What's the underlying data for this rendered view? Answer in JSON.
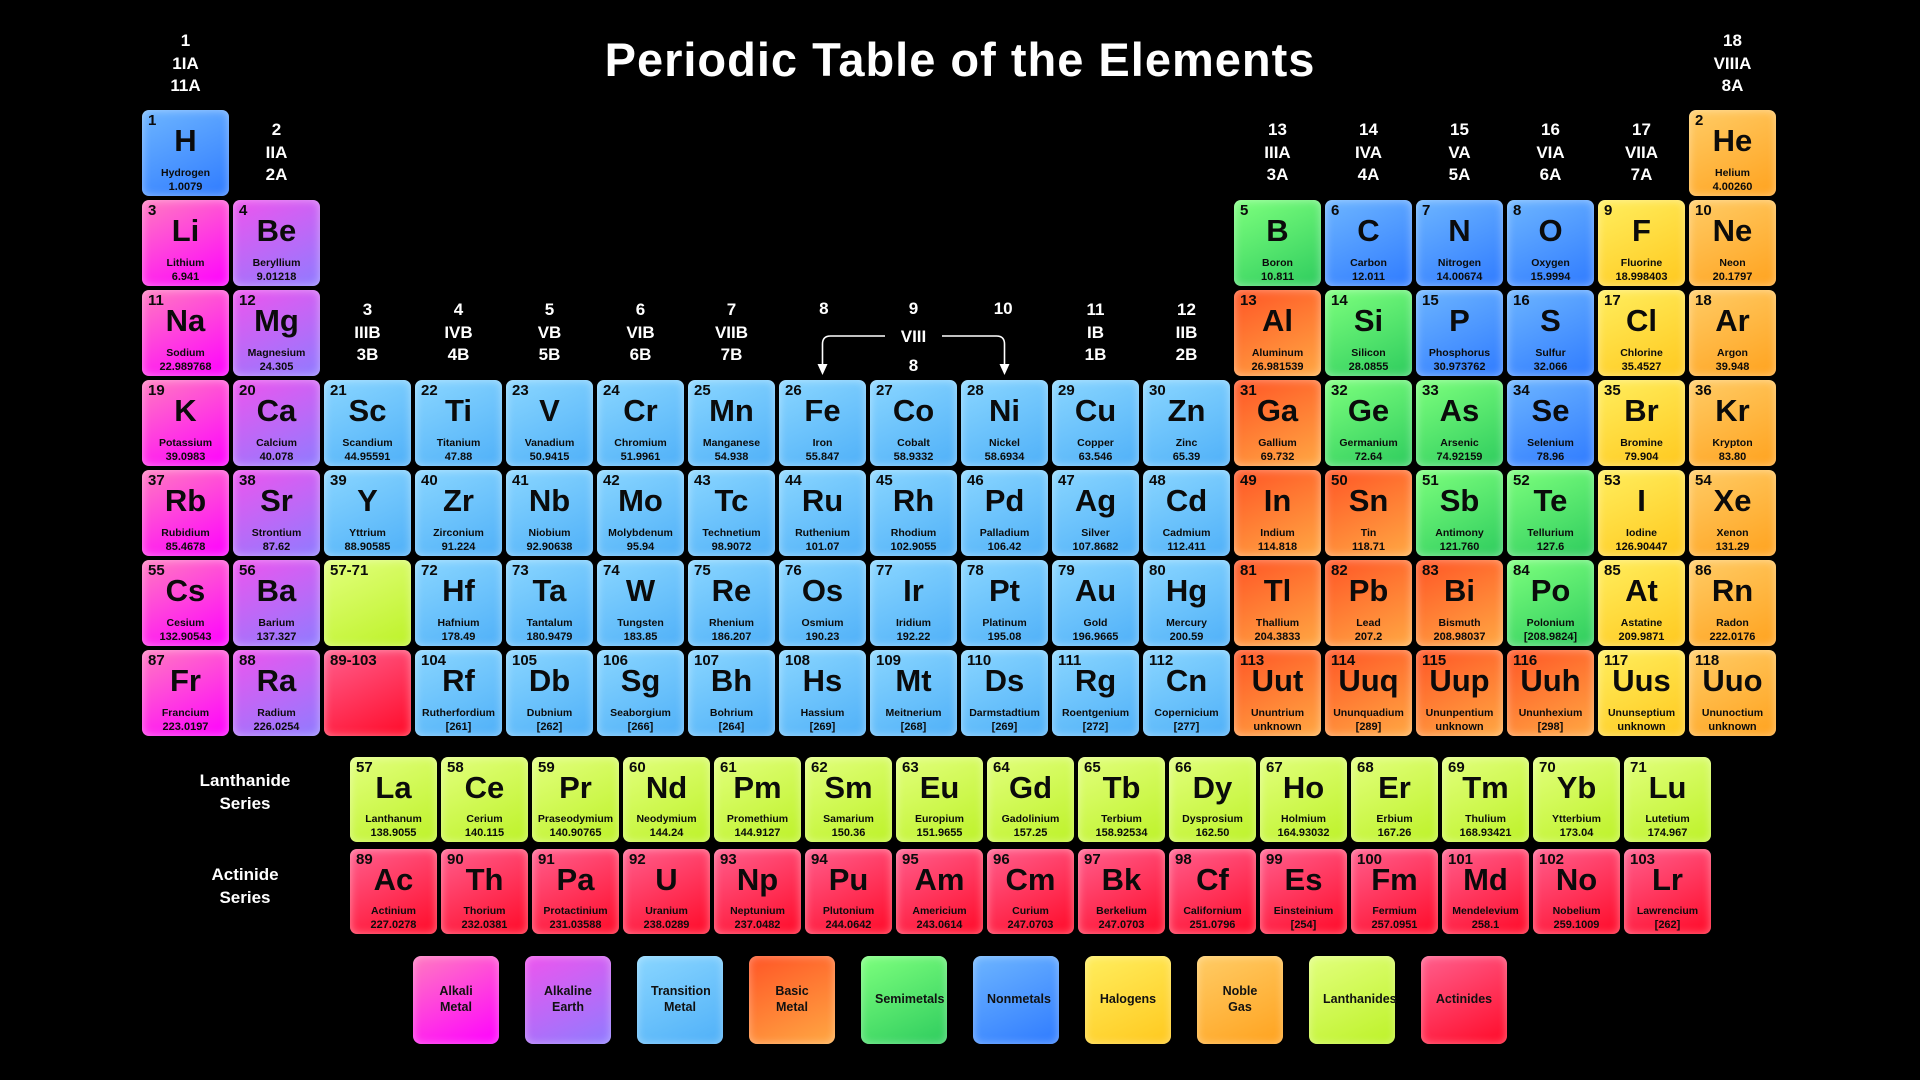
{
  "title": "Periodic Table of the Elements",
  "colors": {
    "alkali": [
      "#ff7bc0",
      "#ff00ff"
    ],
    "alkaline": [
      "#ee55ee",
      "#8f7bff"
    ],
    "transition": [
      "#8ad6ff",
      "#4fb0f8"
    ],
    "basic": [
      "#ff5526",
      "#ffa843"
    ],
    "semimetal": [
      "#7dff7d",
      "#2ecc5e"
    ],
    "nonmetal": [
      "#6db5ff",
      "#2f7bff"
    ],
    "halogen": [
      "#ffee5e",
      "#ffc81e"
    ],
    "noble": [
      "#ffcc66",
      "#ffa21e"
    ],
    "lanthanide": [
      "#e2ff7d",
      "#bdf228"
    ],
    "actinide": [
      "#ff5f8e",
      "#ff0a28"
    ]
  },
  "group_headers": [
    {
      "g": 1,
      "pos": "top",
      "lines": [
        "1",
        "1IA",
        "11A"
      ]
    },
    {
      "g": 18,
      "pos": "top",
      "lines": [
        "18",
        "VIIIA",
        "8A"
      ]
    },
    {
      "g": 2,
      "pos": "p1",
      "lines": [
        "2",
        "IIA",
        "2A"
      ]
    },
    {
      "g": 13,
      "pos": "p1",
      "lines": [
        "13",
        "IIIA",
        "3A"
      ]
    },
    {
      "g": 14,
      "pos": "p1",
      "lines": [
        "14",
        "IVA",
        "4A"
      ]
    },
    {
      "g": 15,
      "pos": "p1",
      "lines": [
        "15",
        "VA",
        "5A"
      ]
    },
    {
      "g": 16,
      "pos": "p1",
      "lines": [
        "16",
        "VIA",
        "6A"
      ]
    },
    {
      "g": 17,
      "pos": "p1",
      "lines": [
        "17",
        "VIIA",
        "7A"
      ]
    },
    {
      "g": 3,
      "pos": "p3",
      "lines": [
        "3",
        "IIIB",
        "3B"
      ]
    },
    {
      "g": 4,
      "pos": "p3",
      "lines": [
        "4",
        "IVB",
        "4B"
      ]
    },
    {
      "g": 5,
      "pos": "p3",
      "lines": [
        "5",
        "VB",
        "5B"
      ]
    },
    {
      "g": 6,
      "pos": "p3",
      "lines": [
        "6",
        "VIB",
        "6B"
      ]
    },
    {
      "g": 7,
      "pos": "p3",
      "lines": [
        "7",
        "VIIB",
        "7B"
      ]
    },
    {
      "g": 11,
      "pos": "p3",
      "lines": [
        "11",
        "IB",
        "1B"
      ]
    },
    {
      "g": 12,
      "pos": "p3",
      "lines": [
        "12",
        "IIB",
        "2B"
      ]
    }
  ],
  "viii_header": {
    "cols": [
      "8",
      "9",
      "10"
    ],
    "label": "VIII",
    "sub": "8"
  },
  "series_labels": {
    "lanthanide_line1": "Lanthanide",
    "lanthanide_line2": "Series",
    "actinide_line1": "Actinide",
    "actinide_line2": "Series"
  },
  "placeholders": [
    {
      "label": "57-71",
      "c": "lanthanide",
      "g": 3,
      "p": 6
    },
    {
      "label": "89-103",
      "c": "actinide",
      "g": 3,
      "p": 7
    }
  ],
  "elements": [
    {
      "n": "1",
      "s": "H",
      "name": "Hydrogen",
      "m": "1.0079",
      "c": "nonmetal",
      "g": 1,
      "p": 1
    },
    {
      "n": "2",
      "s": "He",
      "name": "Helium",
      "m": "4.00260",
      "c": "noble",
      "g": 18,
      "p": 1
    },
    {
      "n": "3",
      "s": "Li",
      "name": "Lithium",
      "m": "6.941",
      "c": "alkali",
      "g": 1,
      "p": 2
    },
    {
      "n": "4",
      "s": "Be",
      "name": "Beryllium",
      "m": "9.01218",
      "c": "alkaline",
      "g": 2,
      "p": 2
    },
    {
      "n": "5",
      "s": "B",
      "name": "Boron",
      "m": "10.811",
      "c": "semimetal",
      "g": 13,
      "p": 2
    },
    {
      "n": "6",
      "s": "C",
      "name": "Carbon",
      "m": "12.011",
      "c": "nonmetal",
      "g": 14,
      "p": 2
    },
    {
      "n": "7",
      "s": "N",
      "name": "Nitrogen",
      "m": "14.00674",
      "c": "nonmetal",
      "g": 15,
      "p": 2
    },
    {
      "n": "8",
      "s": "O",
      "name": "Oxygen",
      "m": "15.9994",
      "c": "nonmetal",
      "g": 16,
      "p": 2
    },
    {
      "n": "9",
      "s": "F",
      "name": "Fluorine",
      "m": "18.998403",
      "c": "halogen",
      "g": 17,
      "p": 2
    },
    {
      "n": "10",
      "s": "Ne",
      "name": "Neon",
      "m": "20.1797",
      "c": "noble",
      "g": 18,
      "p": 2
    },
    {
      "n": "11",
      "s": "Na",
      "name": "Sodium",
      "m": "22.989768",
      "c": "alkali",
      "g": 1,
      "p": 3
    },
    {
      "n": "12",
      "s": "Mg",
      "name": "Magnesium",
      "m": "24.305",
      "c": "alkaline",
      "g": 2,
      "p": 3
    },
    {
      "n": "13",
      "s": "Al",
      "name": "Aluminum",
      "m": "26.981539",
      "c": "basic",
      "g": 13,
      "p": 3
    },
    {
      "n": "14",
      "s": "Si",
      "name": "Silicon",
      "m": "28.0855",
      "c": "semimetal",
      "g": 14,
      "p": 3
    },
    {
      "n": "15",
      "s": "P",
      "name": "Phosphorus",
      "m": "30.973762",
      "c": "nonmetal",
      "g": 15,
      "p": 3
    },
    {
      "n": "16",
      "s": "S",
      "name": "Sulfur",
      "m": "32.066",
      "c": "nonmetal",
      "g": 16,
      "p": 3
    },
    {
      "n": "17",
      "s": "Cl",
      "name": "Chlorine",
      "m": "35.4527",
      "c": "halogen",
      "g": 17,
      "p": 3
    },
    {
      "n": "18",
      "s": "Ar",
      "name": "Argon",
      "m": "39.948",
      "c": "noble",
      "g": 18,
      "p": 3
    },
    {
      "n": "19",
      "s": "K",
      "name": "Potassium",
      "m": "39.0983",
      "c": "alkali",
      "g": 1,
      "p": 4
    },
    {
      "n": "20",
      "s": "Ca",
      "name": "Calcium",
      "m": "40.078",
      "c": "alkaline",
      "g": 2,
      "p": 4
    },
    {
      "n": "21",
      "s": "Sc",
      "name": "Scandium",
      "m": "44.95591",
      "c": "transition",
      "g": 3,
      "p": 4
    },
    {
      "n": "22",
      "s": "Ti",
      "name": "Titanium",
      "m": "47.88",
      "c": "transition",
      "g": 4,
      "p": 4
    },
    {
      "n": "23",
      "s": "V",
      "name": "Vanadium",
      "m": "50.9415",
      "c": "transition",
      "g": 5,
      "p": 4
    },
    {
      "n": "24",
      "s": "Cr",
      "name": "Chromium",
      "m": "51.9961",
      "c": "transition",
      "g": 6,
      "p": 4
    },
    {
      "n": "25",
      "s": "Mn",
      "name": "Manganese",
      "m": "54.938",
      "c": "transition",
      "g": 7,
      "p": 4
    },
    {
      "n": "26",
      "s": "Fe",
      "name": "Iron",
      "m": "55.847",
      "c": "transition",
      "g": 8,
      "p": 4
    },
    {
      "n": "27",
      "s": "Co",
      "name": "Cobalt",
      "m": "58.9332",
      "c": "transition",
      "g": 9,
      "p": 4
    },
    {
      "n": "28",
      "s": "Ni",
      "name": "Nickel",
      "m": "58.6934",
      "c": "transition",
      "g": 10,
      "p": 4
    },
    {
      "n": "29",
      "s": "Cu",
      "name": "Copper",
      "m": "63.546",
      "c": "transition",
      "g": 11,
      "p": 4
    },
    {
      "n": "30",
      "s": "Zn",
      "name": "Zinc",
      "m": "65.39",
      "c": "transition",
      "g": 12,
      "p": 4
    },
    {
      "n": "31",
      "s": "Ga",
      "name": "Gallium",
      "m": "69.732",
      "c": "basic",
      "g": 13,
      "p": 4
    },
    {
      "n": "32",
      "s": "Ge",
      "name": "Germanium",
      "m": "72.64",
      "c": "semimetal",
      "g": 14,
      "p": 4
    },
    {
      "n": "33",
      "s": "As",
      "name": "Arsenic",
      "m": "74.92159",
      "c": "semimetal",
      "g": 15,
      "p": 4
    },
    {
      "n": "34",
      "s": "Se",
      "name": "Selenium",
      "m": "78.96",
      "c": "nonmetal",
      "g": 16,
      "p": 4
    },
    {
      "n": "35",
      "s": "Br",
      "name": "Bromine",
      "m": "79.904",
      "c": "halogen",
      "g": 17,
      "p": 4
    },
    {
      "n": "36",
      "s": "Kr",
      "name": "Krypton",
      "m": "83.80",
      "c": "noble",
      "g": 18,
      "p": 4
    },
    {
      "n": "37",
      "s": "Rb",
      "name": "Rubidium",
      "m": "85.4678",
      "c": "alkali",
      "g": 1,
      "p": 5
    },
    {
      "n": "38",
      "s": "Sr",
      "name": "Strontium",
      "m": "87.62",
      "c": "alkaline",
      "g": 2,
      "p": 5
    },
    {
      "n": "39",
      "s": "Y",
      "name": "Yttrium",
      "m": "88.90585",
      "c": "transition",
      "g": 3,
      "p": 5
    },
    {
      "n": "40",
      "s": "Zr",
      "name": "Zirconium",
      "m": "91.224",
      "c": "transition",
      "g": 4,
      "p": 5
    },
    {
      "n": "41",
      "s": "Nb",
      "name": "Niobium",
      "m": "92.90638",
      "c": "transition",
      "g": 5,
      "p": 5
    },
    {
      "n": "42",
      "s": "Mo",
      "name": "Molybdenum",
      "m": "95.94",
      "c": "transition",
      "g": 6,
      "p": 5
    },
    {
      "n": "43",
      "s": "Tc",
      "name": "Technetium",
      "m": "98.9072",
      "c": "transition",
      "g": 7,
      "p": 5
    },
    {
      "n": "44",
      "s": "Ru",
      "name": "Ruthenium",
      "m": "101.07",
      "c": "transition",
      "g": 8,
      "p": 5
    },
    {
      "n": "45",
      "s": "Rh",
      "name": "Rhodium",
      "m": "102.9055",
      "c": "transition",
      "g": 9,
      "p": 5
    },
    {
      "n": "46",
      "s": "Pd",
      "name": "Palladium",
      "m": "106.42",
      "c": "transition",
      "g": 10,
      "p": 5
    },
    {
      "n": "47",
      "s": "Ag",
      "name": "Silver",
      "m": "107.8682",
      "c": "transition",
      "g": 11,
      "p": 5
    },
    {
      "n": "48",
      "s": "Cd",
      "name": "Cadmium",
      "m": "112.411",
      "c": "transition",
      "g": 12,
      "p": 5
    },
    {
      "n": "49",
      "s": "In",
      "name": "Indium",
      "m": "114.818",
      "c": "basic",
      "g": 13,
      "p": 5
    },
    {
      "n": "50",
      "s": "Sn",
      "name": "Tin",
      "m": "118.71",
      "c": "basic",
      "g": 14,
      "p": 5
    },
    {
      "n": "51",
      "s": "Sb",
      "name": "Antimony",
      "m": "121.760",
      "c": "semimetal",
      "g": 15,
      "p": 5
    },
    {
      "n": "52",
      "s": "Te",
      "name": "Tellurium",
      "m": "127.6",
      "c": "semimetal",
      "g": 16,
      "p": 5
    },
    {
      "n": "53",
      "s": "I",
      "name": "Iodine",
      "m": "126.90447",
      "c": "halogen",
      "g": 17,
      "p": 5
    },
    {
      "n": "54",
      "s": "Xe",
      "name": "Xenon",
      "m": "131.29",
      "c": "noble",
      "g": 18,
      "p": 5
    },
    {
      "n": "55",
      "s": "Cs",
      "name": "Cesium",
      "m": "132.90543",
      "c": "alkali",
      "g": 1,
      "p": 6
    },
    {
      "n": "56",
      "s": "Ba",
      "name": "Barium",
      "m": "137.327",
      "c": "alkaline",
      "g": 2,
      "p": 6
    },
    {
      "n": "72",
      "s": "Hf",
      "name": "Hafnium",
      "m": "178.49",
      "c": "transition",
      "g": 4,
      "p": 6
    },
    {
      "n": "73",
      "s": "Ta",
      "name": "Tantalum",
      "m": "180.9479",
      "c": "transition",
      "g": 5,
      "p": 6
    },
    {
      "n": "74",
      "s": "W",
      "name": "Tungsten",
      "m": "183.85",
      "c": "transition",
      "g": 6,
      "p": 6
    },
    {
      "n": "75",
      "s": "Re",
      "name": "Rhenium",
      "m": "186.207",
      "c": "transition",
      "g": 7,
      "p": 6
    },
    {
      "n": "76",
      "s": "Os",
      "name": "Osmium",
      "m": "190.23",
      "c": "transition",
      "g": 8,
      "p": 6
    },
    {
      "n": "77",
      "s": "Ir",
      "name": "Iridium",
      "m": "192.22",
      "c": "transition",
      "g": 9,
      "p": 6
    },
    {
      "n": "78",
      "s": "Pt",
      "name": "Platinum",
      "m": "195.08",
      "c": "transition",
      "g": 10,
      "p": 6
    },
    {
      "n": "79",
      "s": "Au",
      "name": "Gold",
      "m": "196.9665",
      "c": "transition",
      "g": 11,
      "p": 6
    },
    {
      "n": "80",
      "s": "Hg",
      "name": "Mercury",
      "m": "200.59",
      "c": "transition",
      "g": 12,
      "p": 6
    },
    {
      "n": "81",
      "s": "Tl",
      "name": "Thallium",
      "m": "204.3833",
      "c": "basic",
      "g": 13,
      "p": 6
    },
    {
      "n": "82",
      "s": "Pb",
      "name": "Lead",
      "m": "207.2",
      "c": "basic",
      "g": 14,
      "p": 6
    },
    {
      "n": "83",
      "s": "Bi",
      "name": "Bismuth",
      "m": "208.98037",
      "c": "basic",
      "g": 15,
      "p": 6
    },
    {
      "n": "84",
      "s": "Po",
      "name": "Polonium",
      "m": "[208.9824]",
      "c": "semimetal",
      "g": 16,
      "p": 6
    },
    {
      "n": "85",
      "s": "At",
      "name": "Astatine",
      "m": "209.9871",
      "c": "halogen",
      "g": 17,
      "p": 6
    },
    {
      "n": "86",
      "s": "Rn",
      "name": "Radon",
      "m": "222.0176",
      "c": "noble",
      "g": 18,
      "p": 6
    },
    {
      "n": "87",
      "s": "Fr",
      "name": "Francium",
      "m": "223.0197",
      "c": "alkali",
      "g": 1,
      "p": 7
    },
    {
      "n": "88",
      "s": "Ra",
      "name": "Radium",
      "m": "226.0254",
      "c": "alkaline",
      "g": 2,
      "p": 7
    },
    {
      "n": "104",
      "s": "Rf",
      "name": "Rutherfordium",
      "m": "[261]",
      "c": "transition",
      "g": 4,
      "p": 7
    },
    {
      "n": "105",
      "s": "Db",
      "name": "Dubnium",
      "m": "[262]",
      "c": "transition",
      "g": 5,
      "p": 7
    },
    {
      "n": "106",
      "s": "Sg",
      "name": "Seaborgium",
      "m": "[266]",
      "c": "transition",
      "g": 6,
      "p": 7
    },
    {
      "n": "107",
      "s": "Bh",
      "name": "Bohrium",
      "m": "[264]",
      "c": "transition",
      "g": 7,
      "p": 7
    },
    {
      "n": "108",
      "s": "Hs",
      "name": "Hassium",
      "m": "[269]",
      "c": "transition",
      "g": 8,
      "p": 7
    },
    {
      "n": "109",
      "s": "Mt",
      "name": "Meitnerium",
      "m": "[268]",
      "c": "transition",
      "g": 9,
      "p": 7
    },
    {
      "n": "110",
      "s": "Ds",
      "name": "Darmstadtium",
      "m": "[269]",
      "c": "transition",
      "g": 10,
      "p": 7
    },
    {
      "n": "111",
      "s": "Rg",
      "name": "Roentgenium",
      "m": "[272]",
      "c": "transition",
      "g": 11,
      "p": 7
    },
    {
      "n": "112",
      "s": "Cn",
      "name": "Copernicium",
      "m": "[277]",
      "c": "transition",
      "g": 12,
      "p": 7
    },
    {
      "n": "113",
      "s": "Uut",
      "name": "Ununtrium",
      "m": "unknown",
      "c": "basic",
      "g": 13,
      "p": 7
    },
    {
      "n": "114",
      "s": "Uuq",
      "name": "Ununquadium",
      "m": "[289]",
      "c": "basic",
      "g": 14,
      "p": 7
    },
    {
      "n": "115",
      "s": "Uup",
      "name": "Ununpentium",
      "m": "unknown",
      "c": "basic",
      "g": 15,
      "p": 7
    },
    {
      "n": "116",
      "s": "Uuh",
      "name": "Ununhexium",
      "m": "[298]",
      "c": "basic",
      "g": 16,
      "p": 7
    },
    {
      "n": "117",
      "s": "Uus",
      "name": "Ununseptium",
      "m": "unknown",
      "c": "halogen",
      "g": 17,
      "p": 7
    },
    {
      "n": "118",
      "s": "Uuo",
      "name": "Ununoctium",
      "m": "unknown",
      "c": "noble",
      "g": 18,
      "p": 7
    }
  ],
  "lanthanides": [
    {
      "n": "57",
      "s": "La",
      "name": "Lanthanum",
      "m": "138.9055"
    },
    {
      "n": "58",
      "s": "Ce",
      "name": "Cerium",
      "m": "140.115"
    },
    {
      "n": "59",
      "s": "Pr",
      "name": "Praseodymium",
      "m": "140.90765"
    },
    {
      "n": "60",
      "s": "Nd",
      "name": "Neodymium",
      "m": "144.24"
    },
    {
      "n": "61",
      "s": "Pm",
      "name": "Promethium",
      "m": "144.9127"
    },
    {
      "n": "62",
      "s": "Sm",
      "name": "Samarium",
      "m": "150.36"
    },
    {
      "n": "63",
      "s": "Eu",
      "name": "Europium",
      "m": "151.9655"
    },
    {
      "n": "64",
      "s": "Gd",
      "name": "Gadolinium",
      "m": "157.25"
    },
    {
      "n": "65",
      "s": "Tb",
      "name": "Terbium",
      "m": "158.92534"
    },
    {
      "n": "66",
      "s": "Dy",
      "name": "Dysprosium",
      "m": "162.50"
    },
    {
      "n": "67",
      "s": "Ho",
      "name": "Holmium",
      "m": "164.93032"
    },
    {
      "n": "68",
      "s": "Er",
      "name": "Erbium",
      "m": "167.26"
    },
    {
      "n": "69",
      "s": "Tm",
      "name": "Thulium",
      "m": "168.93421"
    },
    {
      "n": "70",
      "s": "Yb",
      "name": "Ytterbium",
      "m": "173.04"
    },
    {
      "n": "71",
      "s": "Lu",
      "name": "Lutetium",
      "m": "174.967"
    }
  ],
  "actinides": [
    {
      "n": "89",
      "s": "Ac",
      "name": "Actinium",
      "m": "227.0278"
    },
    {
      "n": "90",
      "s": "Th",
      "name": "Thorium",
      "m": "232.0381"
    },
    {
      "n": "91",
      "s": "Pa",
      "name": "Protactinium",
      "m": "231.03588"
    },
    {
      "n": "92",
      "s": "U",
      "name": "Uranium",
      "m": "238.0289"
    },
    {
      "n": "93",
      "s": "Np",
      "name": "Neptunium",
      "m": "237.0482"
    },
    {
      "n": "94",
      "s": "Pu",
      "name": "Plutonium",
      "m": "244.0642"
    },
    {
      "n": "95",
      "s": "Am",
      "name": "Americium",
      "m": "243.0614"
    },
    {
      "n": "96",
      "s": "Cm",
      "name": "Curium",
      "m": "247.0703"
    },
    {
      "n": "97",
      "s": "Bk",
      "name": "Berkelium",
      "m": "247.0703"
    },
    {
      "n": "98",
      "s": "Cf",
      "name": "Californium",
      "m": "251.0796"
    },
    {
      "n": "99",
      "s": "Es",
      "name": "Einsteinium",
      "m": "[254]"
    },
    {
      "n": "100",
      "s": "Fm",
      "name": "Fermium",
      "m": "257.0951"
    },
    {
      "n": "101",
      "s": "Md",
      "name": "Mendelevium",
      "m": "258.1"
    },
    {
      "n": "102",
      "s": "No",
      "name": "Nobelium",
      "m": "259.1009"
    },
    {
      "n": "103",
      "s": "Lr",
      "name": "Lawrencium",
      "m": "[262]"
    }
  ],
  "legend": [
    {
      "label": "Alkali Metal",
      "c": "alkali"
    },
    {
      "label": "Alkaline Earth",
      "c": "alkaline"
    },
    {
      "label": "Transition Metal",
      "c": "transition"
    },
    {
      "label": "Basic Metal",
      "c": "basic"
    },
    {
      "label": "Semimetals",
      "c": "semimetal"
    },
    {
      "label": "Nonmetals",
      "c": "nonmetal"
    },
    {
      "label": "Halogens",
      "c": "halogen"
    },
    {
      "label": "Noble Gas",
      "c": "noble"
    },
    {
      "label": "Lanthanides",
      "c": "lanthanide"
    },
    {
      "label": "Actinides",
      "c": "actinide"
    }
  ]
}
